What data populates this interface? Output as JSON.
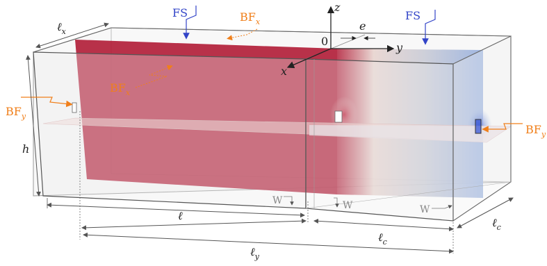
{
  "labels": {
    "lx": "ℓ",
    "lx_sub": "x",
    "fs_left": "FS",
    "fs_right": "FS",
    "bfx_top": "BF",
    "bfx_top_sub": "x",
    "bfx_mid": "BF",
    "bfx_mid_sub": "x",
    "bfy_left": "BF",
    "bfy_left_sub": "y",
    "bfy_right": "BF",
    "bfy_right_sub": "y",
    "h": "h",
    "z": "z",
    "y": "y",
    "x": "x",
    "zero": "0",
    "e": "e",
    "w1": "W",
    "w2": "W",
    "w3": "W",
    "l": "ℓ",
    "lc_bottom": "ℓ",
    "lc_bottom_sub": "c",
    "lc_right": "ℓ",
    "lc_right_sub": "c",
    "ly": "ℓ",
    "ly_sub": "y"
  },
  "colors": {
    "wall": "#b3213b",
    "forcing": "#f07f1a",
    "surface": "#3244c8",
    "cold": "#7f9fd4"
  }
}
